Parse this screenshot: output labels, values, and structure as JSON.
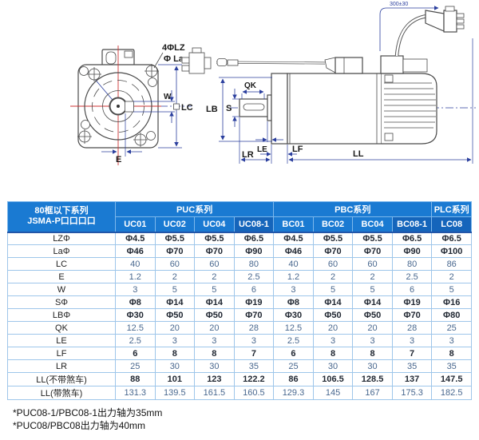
{
  "diagram": {
    "front": {
      "lz": "4ΦLZ",
      "la": "Φ La",
      "w": "W",
      "lc": "LC",
      "e": "E"
    },
    "side": {
      "qk": "QK",
      "s": "S",
      "lb": "LB",
      "le": "LE",
      "lr": "LR",
      "lf": "LF",
      "ll": "LL",
      "cable": "300±30"
    }
  },
  "table": {
    "corner_header": {
      "line1": "80框以下系列",
      "line2": "JSMA-P口口口口"
    },
    "groups": [
      {
        "label": "PUC系列",
        "span": 4
      },
      {
        "label": "PBC系列",
        "span": 4
      },
      {
        "label": "PLC系列",
        "span": 1
      }
    ],
    "columns": [
      {
        "label": "UC01",
        "highlight": false
      },
      {
        "label": "UC02",
        "highlight": false
      },
      {
        "label": "UC04",
        "highlight": false
      },
      {
        "label": "UC08-1",
        "highlight": true
      },
      {
        "label": "BC01",
        "highlight": false
      },
      {
        "label": "BC02",
        "highlight": false
      },
      {
        "label": "BC04",
        "highlight": false
      },
      {
        "label": "BC08-1",
        "highlight": true
      },
      {
        "label": "LC08",
        "highlight": true
      }
    ],
    "rows": [
      {
        "label": "LZΦ",
        "tone": "dark",
        "values": [
          "Φ4.5",
          "Φ5.5",
          "Φ5.5",
          "Φ6.5",
          "Φ4.5",
          "Φ5.5",
          "Φ5.5",
          "Φ6.5",
          "Φ6.5"
        ]
      },
      {
        "label": "LaΦ",
        "tone": "dark",
        "values": [
          "Φ46",
          "Φ70",
          "Φ70",
          "Φ90",
          "Φ46",
          "Φ70",
          "Φ70",
          "Φ90",
          "Φ100"
        ]
      },
      {
        "label": "LC",
        "tone": "blue",
        "values": [
          "40",
          "60",
          "60",
          "80",
          "40",
          "60",
          "60",
          "80",
          "86"
        ]
      },
      {
        "label": "E",
        "tone": "blue",
        "values": [
          "1.2",
          "2",
          "2",
          "2.5",
          "1.2",
          "2",
          "2",
          "2.5",
          "2"
        ]
      },
      {
        "label": "W",
        "tone": "blue",
        "values": [
          "3",
          "5",
          "5",
          "6",
          "3",
          "5",
          "5",
          "6",
          "5"
        ]
      },
      {
        "label": "SΦ",
        "tone": "dark",
        "values": [
          "Φ8",
          "Φ14",
          "Φ14",
          "Φ19",
          "Φ8",
          "Φ14",
          "Φ14",
          "Φ19",
          "Φ16"
        ]
      },
      {
        "label": "LBΦ",
        "tone": "dark",
        "values": [
          "Φ30",
          "Φ50",
          "Φ50",
          "Φ70",
          "Φ30",
          "Φ50",
          "Φ50",
          "Φ70",
          "Φ80"
        ]
      },
      {
        "label": "QK",
        "tone": "blue",
        "values": [
          "12.5",
          "20",
          "20",
          "28",
          "12.5",
          "20",
          "20",
          "28",
          "25"
        ]
      },
      {
        "label": "LE",
        "tone": "blue",
        "values": [
          "2.5",
          "3",
          "3",
          "3",
          "2.5",
          "3",
          "3",
          "3",
          "3"
        ]
      },
      {
        "label": "LF",
        "tone": "dark",
        "values": [
          "6",
          "8",
          "8",
          "7",
          "6",
          "8",
          "8",
          "7",
          "8"
        ]
      },
      {
        "label": "LR",
        "tone": "blue",
        "values": [
          "25",
          "30",
          "30",
          "35",
          "25",
          "30",
          "30",
          "35",
          "35"
        ]
      },
      {
        "label": "LL(不带煞车)",
        "tone": "dark",
        "values": [
          "88",
          "101",
          "123",
          "122.2",
          "86",
          "106.5",
          "128.5",
          "137",
          "147.5"
        ]
      },
      {
        "label": "LL(带煞车)",
        "tone": "blue",
        "values": [
          "131.3",
          "139.5",
          "161.5",
          "160.5",
          "129.3",
          "145",
          "167",
          "175.3",
          "182.5"
        ]
      }
    ]
  },
  "footnotes": [
    "*PUC08-1/PBC08-1出力轴为35mm",
    "*PUC08/PBC08出力轴为40mm"
  ],
  "colors": {
    "header_bg": "#1a7ad2",
    "header_hl_bg": "#1565bb",
    "border": "#9ec6ea",
    "accent_line": "#2356a8",
    "dim": "#2b3f9e",
    "centerline_red": "#cc3333"
  }
}
